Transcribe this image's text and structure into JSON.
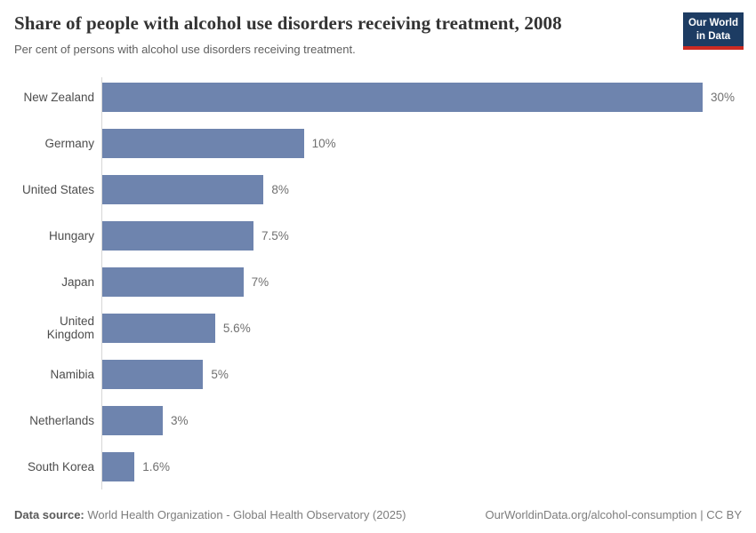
{
  "header": {
    "title": "Share of people with alcohol use disorders receiving treatment, 2008",
    "subtitle": "Per cent of persons with alcohol use disorders receiving treatment.",
    "logo": {
      "line1": "Our World",
      "line2": "in Data"
    }
  },
  "chart_data": {
    "type": "bar",
    "orientation": "horizontal",
    "title": "Share of people with alcohol use disorders receiving treatment, 2008",
    "xlabel": "",
    "ylabel": "",
    "categories": [
      "New Zealand",
      "Germany",
      "United States",
      "Hungary",
      "Japan",
      "United Kingdom",
      "Namibia",
      "Netherlands",
      "South Korea"
    ],
    "values": [
      30,
      10,
      8,
      7.5,
      7,
      5.6,
      5,
      3,
      1.6
    ],
    "value_labels": [
      "30%",
      "10%",
      "8%",
      "7.5%",
      "7%",
      "5.6%",
      "5%",
      "3%",
      "1.6%"
    ],
    "xlim": [
      0,
      30
    ],
    "grid": false,
    "legend": false,
    "bar_color": "#6e84ae"
  },
  "footer": {
    "datasource_label": "Data source:",
    "datasource_text": " World Health Organization - Global Health Observatory (2025)",
    "rights": "OurWorldinData.org/alcohol-consumption | CC BY"
  },
  "colors": {
    "bar": "#6e84ae",
    "logo_navy": "#1d3c63",
    "logo_red": "#cc2a22",
    "axis_line": "#d6d6d6",
    "title_text": "#333333",
    "label_text": "#4d4d4d",
    "value_text": "#707070",
    "footer_text": "#7d7d7d"
  }
}
